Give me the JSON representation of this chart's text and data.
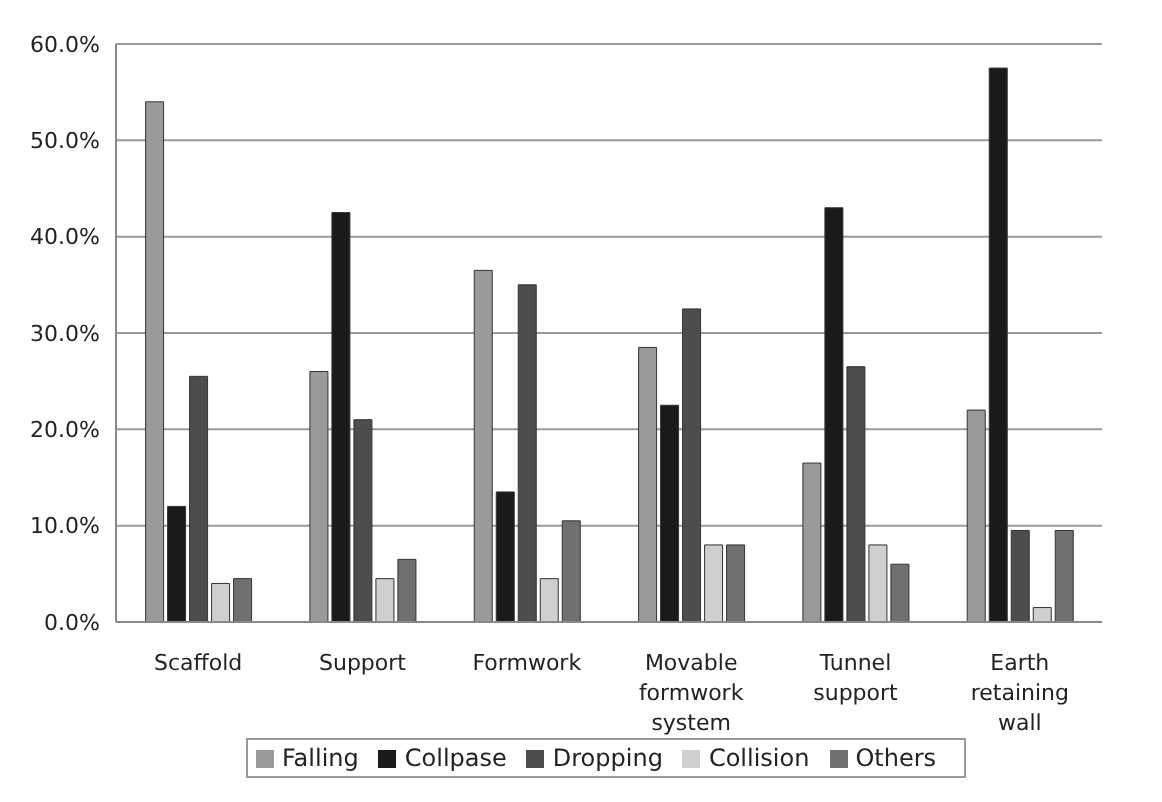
{
  "chart_data": {
    "type": "bar",
    "categories": [
      "Scaffold",
      "Support",
      "Formwork",
      "Movable formwork system",
      "Tunnel support",
      "Earth retaining wall"
    ],
    "series": [
      {
        "name": "Falling",
        "color": "#9a9a9a",
        "values": [
          54,
          26,
          36.5,
          28.5,
          16.5,
          22
        ]
      },
      {
        "name": "Collpase",
        "color": "#1a1a1a",
        "values": [
          12,
          42.5,
          13.5,
          22.5,
          43,
          57.5
        ]
      },
      {
        "name": "Dropping",
        "color": "#4d4d4d",
        "values": [
          25.5,
          21,
          35,
          32.5,
          26.5,
          9.5
        ]
      },
      {
        "name": "Collision",
        "color": "#cfcfcf",
        "values": [
          4,
          4.5,
          4.5,
          8,
          8,
          1.5
        ]
      },
      {
        "name": "Others",
        "color": "#707070",
        "values": [
          4.5,
          6.5,
          10.5,
          8,
          6,
          9.5
        ]
      }
    ],
    "ylim": [
      0,
      60
    ],
    "yticks": [
      {
        "value": 0,
        "label": "0.0%"
      },
      {
        "value": 10,
        "label": "10.0%"
      },
      {
        "value": 20,
        "label": "20.0%"
      },
      {
        "value": 30,
        "label": "30.0%"
      },
      {
        "value": 40,
        "label": "40.0%"
      },
      {
        "value": 50,
        "label": "50.0%"
      },
      {
        "value": 60,
        "label": "60.0%"
      }
    ],
    "grid": "y",
    "legend": "bottom"
  }
}
